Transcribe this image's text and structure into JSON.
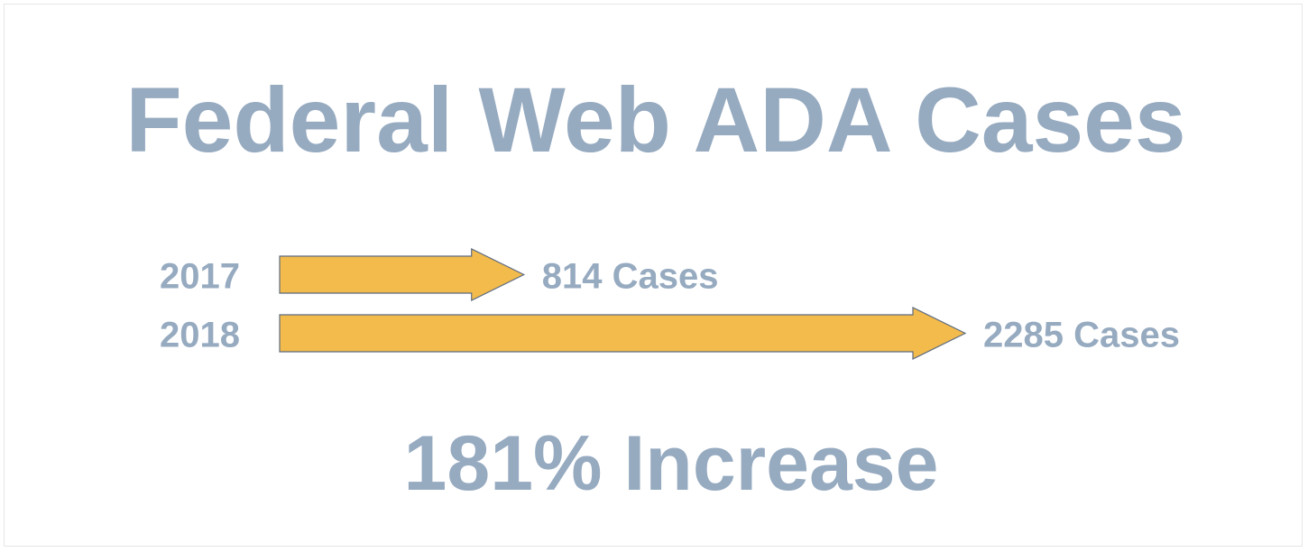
{
  "chart_data": {
    "type": "bar",
    "title": "Federal Web ADA Cases",
    "categories": [
      "2017",
      "2018"
    ],
    "values": [
      814,
      2285
    ],
    "value_labels": [
      "814 Cases",
      "2285 Cases"
    ],
    "footer": "181% Increase",
    "bar_shape": "arrow",
    "colors": {
      "text": "#96aac0",
      "arrow_fill": "#f3bb4c",
      "arrow_stroke": "#5d6b80",
      "background": "#ffffff",
      "frame": "#e6e6e6"
    }
  }
}
